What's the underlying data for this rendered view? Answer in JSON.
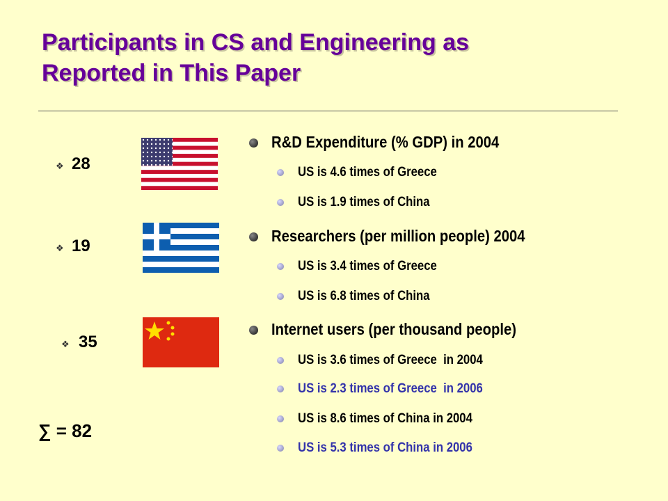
{
  "slide": {
    "title_lines": [
      "Participants in CS and Engineering as",
      "Reported in This Paper"
    ],
    "participants": [
      {
        "count": 28
      },
      {
        "count": 19
      },
      {
        "count": 35
      }
    ],
    "sum": "∑ = 82",
    "sections": [
      {
        "heading": "R&D Expenditure (% GDP) in 2004",
        "items": [
          {
            "text": "US is 4.6 times of Greece",
            "color": "#000000"
          },
          {
            "text": "US is 1.9 times of China",
            "color": "#000000"
          }
        ]
      },
      {
        "heading": "Researchers (per million people) 2004",
        "items": [
          {
            "text": "US is 3.4 times of Greece",
            "color": "#000000"
          },
          {
            "text": "US is 6.8 times of China",
            "color": "#000000"
          }
        ]
      },
      {
        "heading": "Internet users (per thousand people)",
        "items": [
          {
            "text": "US is 3.6 times of Greece  in 2004",
            "color": "#000000"
          },
          {
            "text": "US is 2.3 times of Greece  in 2006",
            "color": "#3333aa"
          },
          {
            "text": "US is 8.6 times of China in 2004",
            "color": "#000000"
          },
          {
            "text": "US is 5.3 times of China in 2006",
            "color": "#3333aa"
          }
        ]
      }
    ]
  }
}
